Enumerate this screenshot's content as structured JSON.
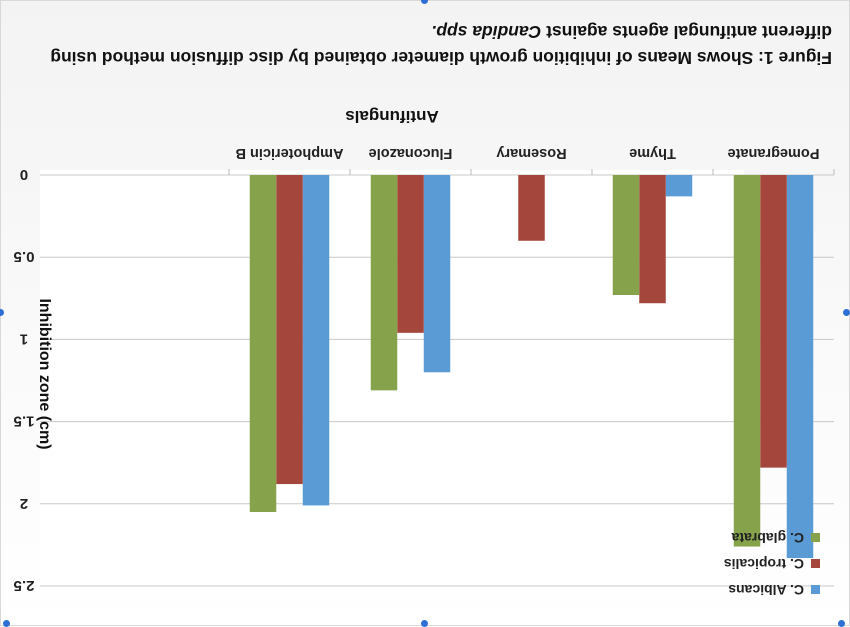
{
  "caption": {
    "line1": "Figure 1: Shows Means of inhibition growth diameter obtained by disc diffusion method using",
    "line2_prefix": "different antifungal agents against ",
    "line2_italic": "Candida spp."
  },
  "chart_data": {
    "type": "bar",
    "orientation": "rendered upside-down (rotated 180°)",
    "xlabel": "Antifungals",
    "ylabel": "Inhibition zone (cm)",
    "categories": [
      "Pomegranate",
      "Thyme",
      "Rosemary",
      "Fluconazole",
      "Amphotericin B"
    ],
    "series": [
      {
        "name": "C. Albicans",
        "color": "#5b9bd5",
        "values": [
          2.33,
          0.13,
          0,
          1.2,
          2.01
        ]
      },
      {
        "name": "C. tropicalis",
        "color": "#a5463c",
        "values": [
          1.78,
          0.78,
          0.4,
          0.96,
          1.88
        ]
      },
      {
        "name": "C. glabrata",
        "color": "#86a34b",
        "values": [
          2.26,
          0.73,
          0,
          1.31,
          2.05
        ]
      }
    ],
    "ylim": [
      0,
      2.5
    ],
    "yticks": [
      "0",
      "0.5",
      "1",
      "1.5",
      "2",
      "2.5"
    ],
    "grid": true,
    "legend_position": "bottom-right"
  }
}
